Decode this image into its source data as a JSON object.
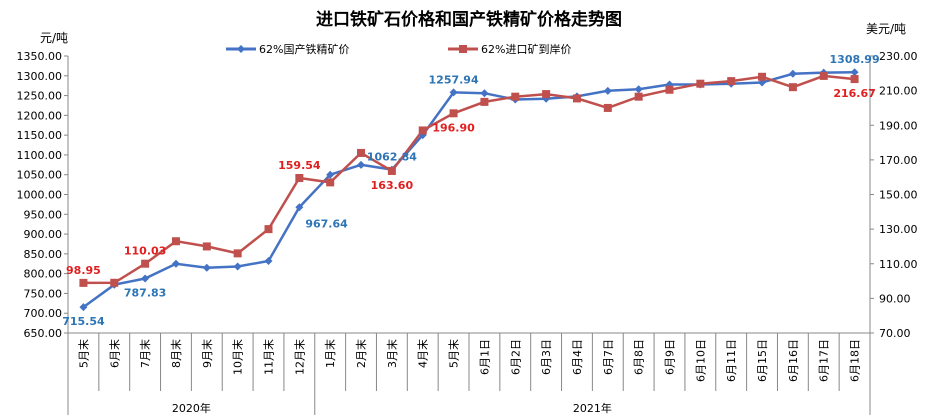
{
  "chart_data": {
    "type": "line",
    "title": "进口铁矿石价格和国产铁精矿价格走势图",
    "left_unit": "元/吨",
    "right_unit": "美元/吨",
    "left_axis": {
      "min": 650,
      "max": 1350,
      "step": 50,
      "tick_labels": [
        "650.00",
        "700.00",
        "750.00",
        "800.00",
        "850.00",
        "900.00",
        "950.00",
        "1000.00",
        "1050.00",
        "1100.00",
        "1150.00",
        "1200.00",
        "1250.00",
        "1300.00",
        "1350.00"
      ]
    },
    "right_axis": {
      "min": 70,
      "max": 230,
      "step": 20,
      "tick_labels": [
        "70.00",
        "90.00",
        "110.00",
        "130.00",
        "150.00",
        "170.00",
        "190.00",
        "210.00",
        "230.00"
      ]
    },
    "categories": [
      "5月末",
      "6月末",
      "7月末",
      "8月末",
      "9月末",
      "10月末",
      "11月末",
      "12月末",
      "1月末",
      "2月末",
      "3月末",
      "4月末",
      "5月末",
      "6月1日",
      "6月2日",
      "6月3日",
      "6月4日",
      "6月7日",
      "6月8日",
      "6月9日",
      "6月10日",
      "6月11日",
      "6月15日",
      "6月16日",
      "6月17日",
      "6月18日"
    ],
    "year_groups": [
      {
        "label": "2020年",
        "start": 0,
        "end": 7
      },
      {
        "label": "2021年",
        "start": 8,
        "end": 25
      }
    ],
    "legend_position": "top-center",
    "grid": false,
    "series": [
      {
        "name": "62%国产铁精矿价",
        "axis": "left",
        "color": "#4472C4",
        "marker": "diamond",
        "values": [
          715.54,
          772,
          787.83,
          825,
          815,
          818,
          832,
          967.64,
          1050,
          1075,
          1062.84,
          1150,
          1257.94,
          1256,
          1240,
          1242,
          1248,
          1262,
          1266,
          1278,
          1278,
          1280,
          1283,
          1305,
          1308,
          1308.99
        ],
        "labels": [
          {
            "index": 0,
            "text": "715.54",
            "pos": "below"
          },
          {
            "index": 2,
            "text": "787.83",
            "pos": "below"
          },
          {
            "index": 7,
            "text": "967.64",
            "pos": "below-right"
          },
          {
            "index": 10,
            "text": "1062.84",
            "pos": "above"
          },
          {
            "index": 12,
            "text": "1257.94",
            "pos": "above"
          },
          {
            "index": 25,
            "text": "1308.99",
            "pos": "above"
          }
        ]
      },
      {
        "name": "62%进口矿到岸价",
        "axis": "right",
        "color": "#C0504D",
        "marker": "square",
        "values": [
          98.95,
          99,
          110.03,
          123,
          120,
          116,
          130,
          159.54,
          157,
          174,
          163.6,
          187,
          196.9,
          203.5,
          206.5,
          208,
          205.5,
          200,
          206.5,
          210.5,
          214,
          215.5,
          218,
          212,
          218.5,
          216.67
        ],
        "labels": [
          {
            "index": 0,
            "text": "98.95",
            "pos": "above"
          },
          {
            "index": 2,
            "text": "110.03",
            "pos": "above"
          },
          {
            "index": 7,
            "text": "159.54",
            "pos": "above"
          },
          {
            "index": 10,
            "text": "163.60",
            "pos": "below"
          },
          {
            "index": 12,
            "text": "196.90",
            "pos": "below"
          },
          {
            "index": 25,
            "text": "216.67",
            "pos": "below"
          }
        ]
      }
    ],
    "label_colors": {
      "left": "#2E75B6",
      "right": "#E02020"
    }
  }
}
